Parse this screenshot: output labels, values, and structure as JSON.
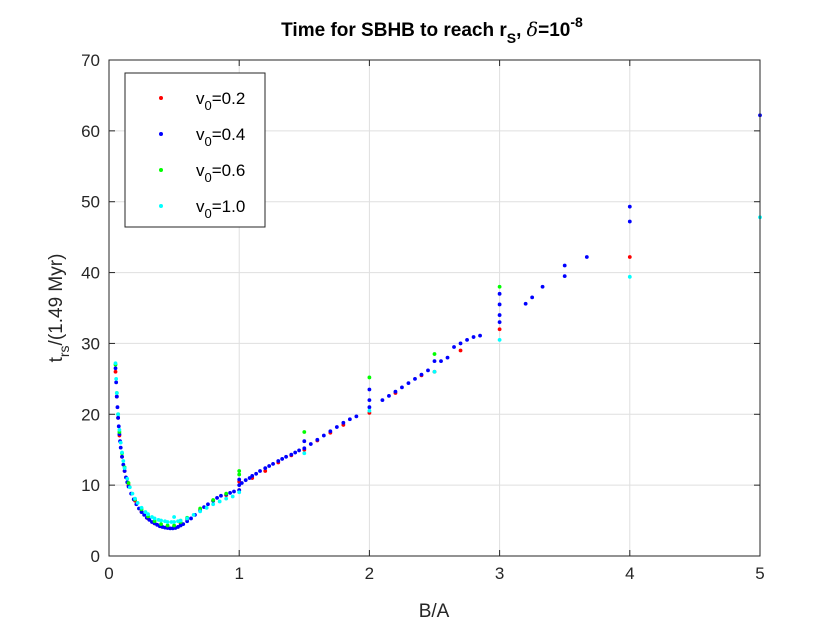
{
  "chart_data": {
    "type": "scatter",
    "title": {
      "main": "Time for SBHB to reach r",
      "main_sub": "S",
      "mid": ", ",
      "delta": "δ",
      "eq": "=10",
      "sup": "-8"
    },
    "xlabel": "B/A",
    "ylabel": {
      "base": "t",
      "sub": "rs",
      "rest": "/(1.49 Myr)"
    },
    "xlim": [
      0,
      5
    ],
    "ylim": [
      0,
      70
    ],
    "xticks": [
      "0",
      "1",
      "2",
      "3",
      "4",
      "5"
    ],
    "yticks": [
      "0",
      "10",
      "20",
      "30",
      "40",
      "50",
      "60",
      "70"
    ],
    "grid": true,
    "legend_position": "top-left",
    "series": [
      {
        "name": {
          "base": "v",
          "sub": "0",
          "rest": "=0.2"
        },
        "color": "#ff0000",
        "x": [
          0.05,
          0.06,
          0.07,
          0.08,
          0.1,
          0.12,
          0.15,
          0.2,
          0.25,
          0.3,
          0.35,
          0.4,
          0.45,
          0.5,
          0.55,
          0.6,
          0.7,
          0.8,
          0.9,
          1.0,
          1.0,
          1.1,
          1.2,
          1.3,
          1.4,
          1.5,
          1.6,
          1.7,
          1.8,
          2.0,
          2.2,
          2.4,
          2.5,
          2.7,
          3.0,
          4.0
        ],
        "y": [
          26.0,
          22.5,
          19.5,
          17.0,
          14.0,
          12.0,
          10.0,
          7.8,
          6.3,
          5.3,
          4.6,
          4.2,
          4.0,
          4.1,
          4.6,
          5.2,
          6.5,
          7.8,
          8.6,
          9.3,
          10.5,
          11.0,
          12.0,
          13.2,
          14.2,
          15.0,
          16.3,
          17.4,
          18.5,
          20.2,
          23.0,
          25.5,
          26.0,
          29.0,
          32.0,
          42.2
        ]
      },
      {
        "name": {
          "base": "v",
          "sub": "0",
          "rest": "=0.4"
        },
        "color": "#0000ff",
        "x": [
          0.05,
          0.055,
          0.06,
          0.065,
          0.07,
          0.075,
          0.08,
          0.085,
          0.09,
          0.1,
          0.11,
          0.12,
          0.13,
          0.14,
          0.15,
          0.17,
          0.19,
          0.21,
          0.23,
          0.25,
          0.27,
          0.29,
          0.31,
          0.33,
          0.35,
          0.37,
          0.39,
          0.41,
          0.43,
          0.45,
          0.47,
          0.49,
          0.51,
          0.53,
          0.55,
          0.57,
          0.6,
          0.63,
          0.66,
          0.7,
          0.73,
          0.76,
          0.8,
          0.83,
          0.86,
          0.9,
          0.93,
          0.96,
          1.0,
          1.0,
          1.0,
          1.02,
          1.05,
          1.08,
          1.1,
          1.13,
          1.16,
          1.2,
          1.23,
          1.26,
          1.3,
          1.33,
          1.36,
          1.4,
          1.43,
          1.46,
          1.5,
          1.5,
          1.55,
          1.6,
          1.65,
          1.7,
          1.75,
          1.8,
          1.85,
          1.9,
          2.0,
          2.0,
          2.0,
          2.1,
          2.15,
          2.2,
          2.25,
          2.3,
          2.35,
          2.4,
          2.45,
          2.5,
          2.55,
          2.6,
          2.65,
          2.7,
          2.75,
          2.8,
          2.85,
          3.0,
          3.0,
          3.0,
          3.0,
          3.2,
          3.25,
          3.33,
          3.5,
          3.5,
          3.67,
          4.0,
          4.0,
          5.0
        ],
        "y": [
          26.5,
          24.5,
          22.5,
          21.0,
          19.5,
          18.3,
          17.2,
          16.2,
          15.3,
          14.0,
          12.9,
          12.0,
          11.1,
          10.4,
          9.8,
          8.8,
          8.0,
          7.3,
          6.7,
          6.2,
          5.8,
          5.4,
          5.1,
          4.8,
          4.6,
          4.4,
          4.2,
          4.1,
          4.0,
          3.95,
          3.9,
          3.9,
          3.95,
          4.1,
          4.3,
          4.5,
          4.9,
          5.3,
          5.8,
          6.4,
          6.9,
          7.3,
          7.8,
          8.2,
          8.5,
          8.7,
          8.9,
          9.1,
          9.3,
          10.0,
          10.8,
          10.3,
          10.7,
          11.0,
          11.3,
          11.6,
          12.0,
          12.4,
          12.7,
          13.0,
          13.4,
          13.7,
          14.0,
          14.3,
          14.6,
          14.9,
          15.2,
          16.2,
          15.8,
          16.4,
          17.0,
          17.6,
          18.2,
          18.8,
          19.3,
          19.7,
          21.0,
          22.0,
          23.5,
          22.0,
          22.6,
          23.2,
          23.8,
          24.4,
          25.0,
          25.6,
          26.2,
          27.5,
          27.5,
          28.0,
          29.5,
          30.0,
          30.5,
          30.9,
          31.1,
          33.0,
          34.0,
          35.5,
          37.0,
          35.6,
          36.5,
          38.0,
          39.5,
          41.0,
          42.2,
          47.2,
          49.3,
          62.2
        ]
      },
      {
        "name": {
          "base": "v",
          "sub": "0",
          "rest": "=0.6"
        },
        "color": "#00ff00",
        "x": [
          0.05,
          0.06,
          0.07,
          0.08,
          0.1,
          0.12,
          0.15,
          0.2,
          0.25,
          0.3,
          0.35,
          0.4,
          0.45,
          0.5,
          0.55,
          0.6,
          0.7,
          0.8,
          0.9,
          1.0,
          1.0,
          1.5,
          2.0,
          2.5,
          3.0
        ],
        "y": [
          27.0,
          23.0,
          20.0,
          17.5,
          14.5,
          12.5,
          10.3,
          8.0,
          6.6,
          5.6,
          4.9,
          4.5,
          4.3,
          4.3,
          4.8,
          5.4,
          6.7,
          7.9,
          8.8,
          11.5,
          12.0,
          17.5,
          25.2,
          28.5,
          38.0
        ]
      },
      {
        "name": {
          "base": "v",
          "sub": "0",
          "rest": "=1.0"
        },
        "color": "#00ffff",
        "x": [
          0.05,
          0.055,
          0.06,
          0.07,
          0.08,
          0.09,
          0.1,
          0.11,
          0.12,
          0.14,
          0.16,
          0.18,
          0.2,
          0.22,
          0.25,
          0.28,
          0.3,
          0.33,
          0.35,
          0.38,
          0.4,
          0.43,
          0.45,
          0.48,
          0.5,
          0.5,
          0.53,
          0.55,
          0.6,
          0.65,
          0.7,
          0.75,
          0.8,
          0.85,
          0.9,
          0.95,
          1.0,
          1.5,
          2.0,
          2.5,
          3.0,
          4.0,
          5.0
        ],
        "y": [
          27.2,
          25.0,
          23.0,
          20.0,
          17.8,
          16.0,
          14.6,
          13.4,
          12.4,
          10.9,
          9.7,
          8.8,
          8.1,
          7.5,
          6.8,
          6.2,
          5.9,
          5.5,
          5.3,
          5.1,
          5.0,
          4.9,
          4.8,
          4.8,
          4.8,
          5.5,
          4.9,
          5.0,
          5.3,
          5.8,
          6.3,
          6.8,
          7.3,
          7.7,
          8.1,
          8.4,
          9.0,
          14.5,
          20.5,
          26.0,
          30.5,
          39.4,
          47.8
        ]
      }
    ]
  }
}
